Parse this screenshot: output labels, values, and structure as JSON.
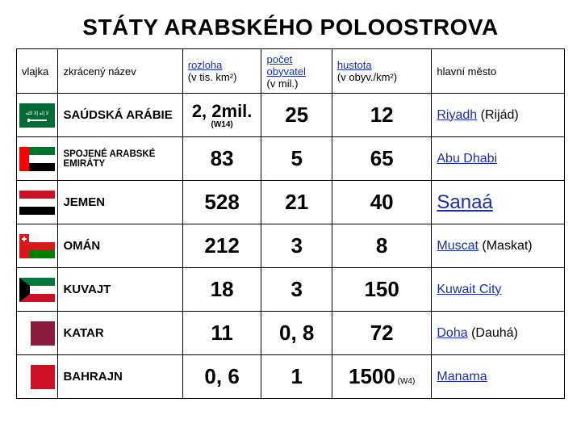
{
  "title": "STÁTY ARABSKÉHO POLOOSTROVA",
  "headers": {
    "flag": "vlajka",
    "name": "zkrácený název",
    "area_link": "rozloha",
    "area_unit": "(v tis. km²)",
    "pop_link": "počet obyvatel",
    "pop_unit": "(v mil.)",
    "den_link": "hustota",
    "den_unit": "(v obyv./km²)",
    "cap": "hlavní město"
  },
  "rows": [
    {
      "name": "SAÚDSKÁ ARÁBIE",
      "area": "2, 2mil.",
      "area_note": "(W14)",
      "pop": "25",
      "den": "12",
      "cap_link": "Riyadh",
      "cap_extra": " (Rijád)",
      "flag_svg": "sa"
    },
    {
      "name": "SPOJENÉ ARABSKÉ EMIRÁTY",
      "name_small": true,
      "area": "83",
      "pop": "5",
      "den": "65",
      "cap_link": "Abu Dhabi",
      "flag_svg": "ae"
    },
    {
      "name": "JEMEN",
      "area": "528",
      "pop": "21",
      "den": "40",
      "cap_link": "Sanaá",
      "cap_big": true,
      "flag_svg": "ye"
    },
    {
      "name": "OMÁN",
      "area": "212",
      "pop": "3",
      "den": "8",
      "cap_link": "Muscat",
      "cap_extra": " (Maskat)",
      "flag_svg": "om"
    },
    {
      "name": "KUVAJT",
      "area": "18",
      "pop": "3",
      "den": "150",
      "cap_link": "Kuwait City",
      "flag_svg": "kw"
    },
    {
      "name": "KATAR",
      "area": "11",
      "pop": "0, 8",
      "den": "72",
      "cap_link": "Doha",
      "cap_extra": " (Dauhá)",
      "flag_svg": "qa"
    },
    {
      "name": "BAHRAJN",
      "area": "0, 6",
      "pop": "1",
      "den": "1500",
      "den_note": " (W4)",
      "cap_link": "Manama",
      "flag_svg": "bh"
    }
  ],
  "colors": {
    "link": "#1a2fa8",
    "border": "#000000",
    "bg": "#ffffff"
  }
}
